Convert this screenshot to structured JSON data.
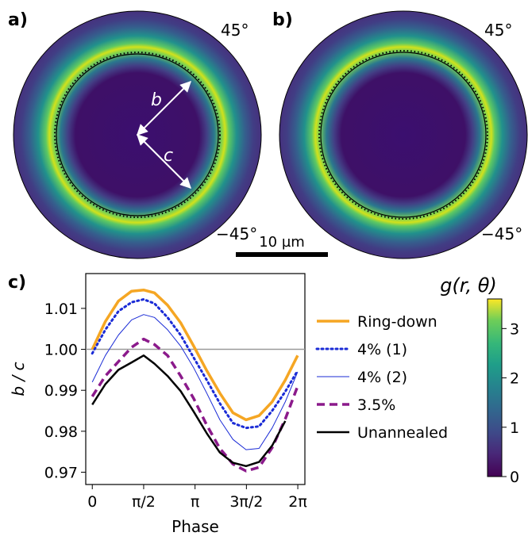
{
  "panels": {
    "a": {
      "label": "a)",
      "angle_top": "45°",
      "angle_bottom": "−45°",
      "arrow_b": "b",
      "arrow_c": "c"
    },
    "b": {
      "label": "b)",
      "angle_top": "45°",
      "angle_bottom": "−45°"
    },
    "c": {
      "label": "c)"
    }
  },
  "scalebar": {
    "label": "10 µm"
  },
  "colorbar": {
    "label": "g(r, θ)",
    "ticks": [
      "0",
      "1",
      "2",
      "3"
    ],
    "tick_values": [
      0,
      1,
      2,
      3
    ],
    "range": [
      0,
      3.6
    ],
    "colormap": "viridis"
  },
  "chart_data": {
    "type": "line",
    "xlabel": "Phase",
    "ylabel": "b / c",
    "xlim": [
      -0.2,
      6.5
    ],
    "ylim": [
      0.967,
      1.0185
    ],
    "xticks": [
      "0",
      "π/2",
      "π",
      "3π/2",
      "2π"
    ],
    "xtick_values": [
      0,
      1.5708,
      3.1416,
      4.7124,
      6.2832
    ],
    "yticks": [
      "0.97",
      "0.98",
      "0.99",
      "1.00",
      "1.01"
    ],
    "ytick_values": [
      0.97,
      0.98,
      0.99,
      1.0,
      1.01
    ],
    "reference_line": 1.0,
    "legend_position": "outside-right",
    "series": [
      {
        "name": "Ring-down",
        "color": "#f5a623",
        "style": "solid-thick",
        "x": [
          0,
          0.4,
          0.8,
          1.2,
          1.57,
          1.9,
          2.3,
          2.7,
          3.1,
          3.5,
          3.9,
          4.3,
          4.7,
          5.1,
          5.5,
          5.9,
          6.28
        ],
        "y": [
          1.0,
          1.0068,
          1.0118,
          1.0142,
          1.0145,
          1.0138,
          1.0108,
          1.0065,
          1.0008,
          0.9948,
          0.9893,
          0.9845,
          0.9828,
          0.9838,
          0.9872,
          0.9925,
          0.9985
        ]
      },
      {
        "name": "4% (1)",
        "color": "#1a2bd6",
        "style": "dotted",
        "x": [
          0,
          0.4,
          0.8,
          1.2,
          1.57,
          1.9,
          2.3,
          2.7,
          3.1,
          3.5,
          3.9,
          4.3,
          4.7,
          5.1,
          5.5,
          5.9,
          6.28
        ],
        "y": [
          0.999,
          1.0048,
          1.0093,
          1.0115,
          1.0122,
          1.0112,
          1.0078,
          1.0035,
          0.998,
          0.9925,
          0.9868,
          0.982,
          0.9808,
          0.9812,
          0.985,
          0.9897,
          0.9948
        ]
      },
      {
        "name": "4% (2)",
        "color": "#1a2bd6",
        "style": "thin",
        "x": [
          0,
          0.4,
          0.8,
          1.2,
          1.57,
          1.9,
          2.3,
          2.7,
          3.1,
          3.5,
          3.9,
          4.3,
          4.7,
          5.1,
          5.5,
          5.9,
          6.28
        ],
        "y": [
          0.992,
          0.9985,
          1.0035,
          1.0072,
          1.0085,
          1.0078,
          1.0048,
          1.0008,
          0.9955,
          0.9893,
          0.9828,
          0.978,
          0.9755,
          0.9758,
          0.9808,
          0.9872,
          0.9945
        ]
      },
      {
        "name": "3.5%",
        "color": "#8b1a8b",
        "style": "dashed",
        "x": [
          0,
          0.4,
          0.8,
          1.2,
          1.57,
          1.9,
          2.3,
          2.7,
          3.1,
          3.5,
          3.9,
          4.3,
          4.7,
          5.1,
          5.5,
          5.9,
          6.28
        ],
        "y": [
          0.9885,
          0.9935,
          0.997,
          1.0005,
          1.0025,
          1.0012,
          0.9985,
          0.9935,
          0.988,
          0.9815,
          0.9758,
          0.972,
          0.9703,
          0.9712,
          0.976,
          0.983,
          0.991
        ]
      },
      {
        "name": "Unannealed",
        "color": "#000000",
        "style": "solid",
        "x": [
          0,
          0.4,
          0.8,
          1.2,
          1.57,
          1.9,
          2.3,
          2.7,
          3.1,
          3.5,
          3.9,
          4.3,
          4.7,
          5.1,
          5.5,
          5.9
        ],
        "y": [
          0.9865,
          0.9915,
          0.995,
          0.9968,
          0.9985,
          0.9965,
          0.9935,
          0.9898,
          0.9848,
          0.9795,
          0.9748,
          0.9723,
          0.9715,
          0.9725,
          0.9765,
          0.9825
        ]
      }
    ]
  }
}
